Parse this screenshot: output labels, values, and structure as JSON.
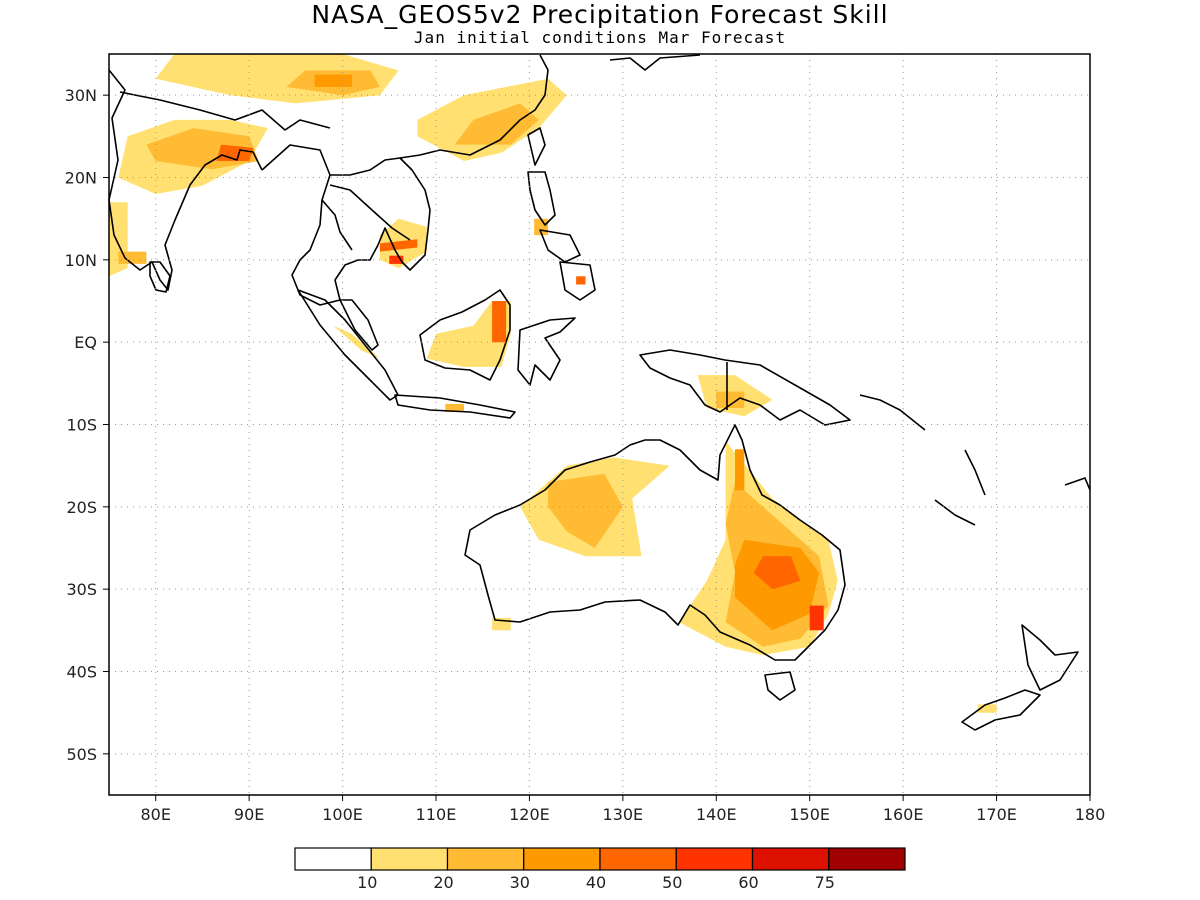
{
  "title": "NASA_GEOS5v2 Precipitation Forecast Skill",
  "subtitle": "Jan initial conditions  Mar Forecast",
  "map": {
    "lon_range": [
      75,
      180
    ],
    "lat_range": [
      -55,
      35
    ],
    "lon_ticks": [
      {
        "value": 80,
        "label": "80E"
      },
      {
        "value": 90,
        "label": "90E"
      },
      {
        "value": 100,
        "label": "100E"
      },
      {
        "value": 110,
        "label": "110E"
      },
      {
        "value": 120,
        "label": "120E"
      },
      {
        "value": 130,
        "label": "130E"
      },
      {
        "value": 140,
        "label": "140E"
      },
      {
        "value": 150,
        "label": "150E"
      },
      {
        "value": 160,
        "label": "160E"
      },
      {
        "value": 170,
        "label": "170E"
      },
      {
        "value": 180,
        "label": "180"
      }
    ],
    "lat_ticks": [
      {
        "value": 30,
        "label": "30N"
      },
      {
        "value": 20,
        "label": "20N"
      },
      {
        "value": 10,
        "label": "10N"
      },
      {
        "value": 0,
        "label": "EQ"
      },
      {
        "value": -10,
        "label": "10S"
      },
      {
        "value": -20,
        "label": "20S"
      },
      {
        "value": -30,
        "label": "30S"
      },
      {
        "value": -40,
        "label": "40S"
      },
      {
        "value": -50,
        "label": "50S"
      }
    ],
    "grid": true
  },
  "colorbar": {
    "colors": [
      "#ffffff",
      "#ffe070",
      "#ffbb33",
      "#ff9900",
      "#ff6600",
      "#ff3300",
      "#dd1100",
      "#a00000"
    ],
    "labels": [
      "10",
      "20",
      "30",
      "40",
      "50",
      "60",
      "75"
    ]
  },
  "skill_regions": [
    {
      "name": "india-north",
      "level": 1,
      "points": [
        [
          76,
          20
        ],
        [
          80,
          18
        ],
        [
          85,
          19
        ],
        [
          90,
          22
        ],
        [
          92,
          26
        ],
        [
          88,
          27
        ],
        [
          82,
          27
        ],
        [
          77,
          25
        ]
      ]
    },
    {
      "name": "india-core",
      "level": 2,
      "points": [
        [
          80,
          22
        ],
        [
          86,
          21
        ],
        [
          91,
          22
        ],
        [
          90,
          25
        ],
        [
          84,
          26
        ],
        [
          79,
          24
        ]
      ]
    },
    {
      "name": "bangladesh",
      "level": 4,
      "points": [
        [
          86.5,
          22
        ],
        [
          90,
          22
        ],
        [
          90.5,
          23.6
        ],
        [
          87,
          24
        ]
      ]
    },
    {
      "name": "india-west",
      "level": 1,
      "points": [
        [
          75,
          8
        ],
        [
          77,
          9
        ],
        [
          77,
          17
        ],
        [
          75,
          17
        ]
      ]
    },
    {
      "name": "india-south",
      "level": 2,
      "points": [
        [
          76,
          9.5
        ],
        [
          79,
          9.5
        ],
        [
          79,
          11
        ],
        [
          76,
          11
        ]
      ]
    },
    {
      "name": "tibet",
      "level": 1,
      "points": [
        [
          80,
          32
        ],
        [
          88,
          30
        ],
        [
          95,
          29
        ],
        [
          104,
          30
        ],
        [
          106,
          33
        ],
        [
          100,
          35
        ],
        [
          88,
          35
        ],
        [
          82,
          35
        ]
      ]
    },
    {
      "name": "tibet-core",
      "level": 2,
      "points": [
        [
          94,
          31
        ],
        [
          100,
          30
        ],
        [
          104,
          31
        ],
        [
          103,
          33
        ],
        [
          96,
          33
        ]
      ]
    },
    {
      "name": "tibet-hot",
      "level": 3,
      "points": [
        [
          97,
          31
        ],
        [
          101,
          31
        ],
        [
          101,
          32.5
        ],
        [
          97,
          32.5
        ]
      ]
    },
    {
      "name": "south-china",
      "level": 1,
      "points": [
        [
          108,
          25
        ],
        [
          113,
          22
        ],
        [
          117,
          23
        ],
        [
          121,
          26
        ],
        [
          124,
          30
        ],
        [
          122,
          32
        ],
        [
          113,
          30
        ],
        [
          108,
          27
        ]
      ]
    },
    {
      "name": "south-china-core",
      "level": 2,
      "points": [
        [
          112,
          24
        ],
        [
          118,
          24
        ],
        [
          121,
          27
        ],
        [
          119,
          29
        ],
        [
          114,
          27
        ]
      ]
    },
    {
      "name": "indochina",
      "level": 1,
      "points": [
        [
          104,
          10
        ],
        [
          106,
          9
        ],
        [
          109,
          11
        ],
        [
          109,
          14
        ],
        [
          106,
          15
        ],
        [
          104,
          13
        ]
      ]
    },
    {
      "name": "cambodia",
      "level": 4,
      "points": [
        [
          104,
          11
        ],
        [
          108,
          11.5
        ],
        [
          108,
          12.5
        ],
        [
          104,
          12
        ]
      ]
    },
    {
      "name": "mekong-delta",
      "level": 5,
      "points": [
        [
          105,
          9.5
        ],
        [
          106.5,
          9.5
        ],
        [
          106.5,
          10.5
        ],
        [
          105,
          10.5
        ]
      ]
    },
    {
      "name": "philippines",
      "level": 2,
      "points": [
        [
          120.5,
          13
        ],
        [
          122,
          13
        ],
        [
          122,
          15
        ],
        [
          120.5,
          15
        ]
      ]
    },
    {
      "name": "mindanao",
      "level": 4,
      "points": [
        [
          125,
          7
        ],
        [
          126,
          7
        ],
        [
          126,
          8
        ],
        [
          125,
          8
        ]
      ]
    },
    {
      "name": "borneo",
      "level": 1,
      "points": [
        [
          109,
          -2
        ],
        [
          113,
          -3
        ],
        [
          117,
          -3
        ],
        [
          118,
          1
        ],
        [
          118,
          5
        ],
        [
          116,
          5
        ],
        [
          114,
          2
        ],
        [
          110,
          1
        ]
      ]
    },
    {
      "name": "borneo-north",
      "level": 4,
      "points": [
        [
          116,
          0
        ],
        [
          117.5,
          0
        ],
        [
          117.5,
          5
        ],
        [
          116,
          5
        ]
      ]
    },
    {
      "name": "sumatra",
      "level": 1,
      "points": [
        [
          99,
          2
        ],
        [
          101,
          1
        ],
        [
          103,
          -1
        ],
        [
          104,
          -2
        ],
        [
          102,
          -1
        ],
        [
          100,
          1
        ]
      ]
    },
    {
      "name": "java",
      "level": 2,
      "points": [
        [
          111,
          -7.5
        ],
        [
          113,
          -7.5
        ],
        [
          113,
          -8.5
        ],
        [
          111,
          -8.5
        ]
      ]
    },
    {
      "name": "new-guinea",
      "level": 1,
      "points": [
        [
          138,
          -4
        ],
        [
          142,
          -4
        ],
        [
          146,
          -7
        ],
        [
          143,
          -9
        ],
        [
          139,
          -8
        ]
      ]
    },
    {
      "name": "new-guinea-core",
      "level": 2,
      "points": [
        [
          140,
          -6
        ],
        [
          143,
          -6
        ],
        [
          143,
          -8
        ],
        [
          140,
          -8
        ]
      ]
    },
    {
      "name": "nw-australia",
      "level": 1,
      "points": [
        [
          119,
          -20
        ],
        [
          124,
          -15
        ],
        [
          129,
          -14
        ],
        [
          135,
          -15
        ],
        [
          131,
          -19
        ],
        [
          132,
          -26
        ],
        [
          126,
          -26
        ],
        [
          121,
          -24
        ]
      ]
    },
    {
      "name": "kimberley",
      "level": 2,
      "points": [
        [
          122,
          -17
        ],
        [
          128,
          -16
        ],
        [
          130,
          -20
        ],
        [
          127,
          -25
        ],
        [
          124,
          -23
        ],
        [
          122,
          -20
        ]
      ]
    },
    {
      "name": "east-australia",
      "level": 1,
      "points": [
        [
          141,
          -12
        ],
        [
          146,
          -19
        ],
        [
          152,
          -24
        ],
        [
          153,
          -29
        ],
        [
          152,
          -33
        ],
        [
          150,
          -37
        ],
        [
          145,
          -38
        ],
        [
          141,
          -37
        ],
        [
          136,
          -34
        ],
        [
          139,
          -29
        ],
        [
          141,
          -24
        ],
        [
          141,
          -17
        ]
      ]
    },
    {
      "name": "east-australia-core",
      "level": 2,
      "points": [
        [
          142,
          -17
        ],
        [
          147,
          -22
        ],
        [
          151,
          -26
        ],
        [
          152,
          -32
        ],
        [
          149,
          -36
        ],
        [
          145,
          -37
        ],
        [
          141,
          -34
        ],
        [
          142,
          -28
        ],
        [
          141,
          -22
        ]
      ]
    },
    {
      "name": "queensland-hot",
      "level": 3,
      "points": [
        [
          143,
          -24
        ],
        [
          149,
          -25
        ],
        [
          151,
          -28
        ],
        [
          150,
          -33
        ],
        [
          146,
          -35
        ],
        [
          142,
          -31
        ],
        [
          142,
          -27
        ]
      ]
    },
    {
      "name": "queensland-max",
      "level": 4,
      "points": [
        [
          145,
          -26
        ],
        [
          148,
          -26
        ],
        [
          149,
          -29
        ],
        [
          146,
          -30
        ],
        [
          144,
          -28
        ]
      ]
    },
    {
      "name": "nsw-max",
      "level": 5,
      "points": [
        [
          150,
          -32
        ],
        [
          151.5,
          -32
        ],
        [
          151.5,
          -35
        ],
        [
          150,
          -35
        ]
      ]
    },
    {
      "name": "cape-york",
      "level": 3,
      "points": [
        [
          142,
          -13
        ],
        [
          143,
          -13
        ],
        [
          143,
          -18
        ],
        [
          142,
          -18
        ]
      ]
    },
    {
      "name": "sw-australia",
      "level": 1,
      "points": [
        [
          116,
          -33.5
        ],
        [
          118,
          -33.5
        ],
        [
          118,
          -35
        ],
        [
          116,
          -35
        ]
      ]
    },
    {
      "name": "nz",
      "level": 1,
      "points": [
        [
          168,
          -44
        ],
        [
          170,
          -44
        ],
        [
          170,
          -45
        ],
        [
          168,
          -45
        ]
      ]
    }
  ]
}
